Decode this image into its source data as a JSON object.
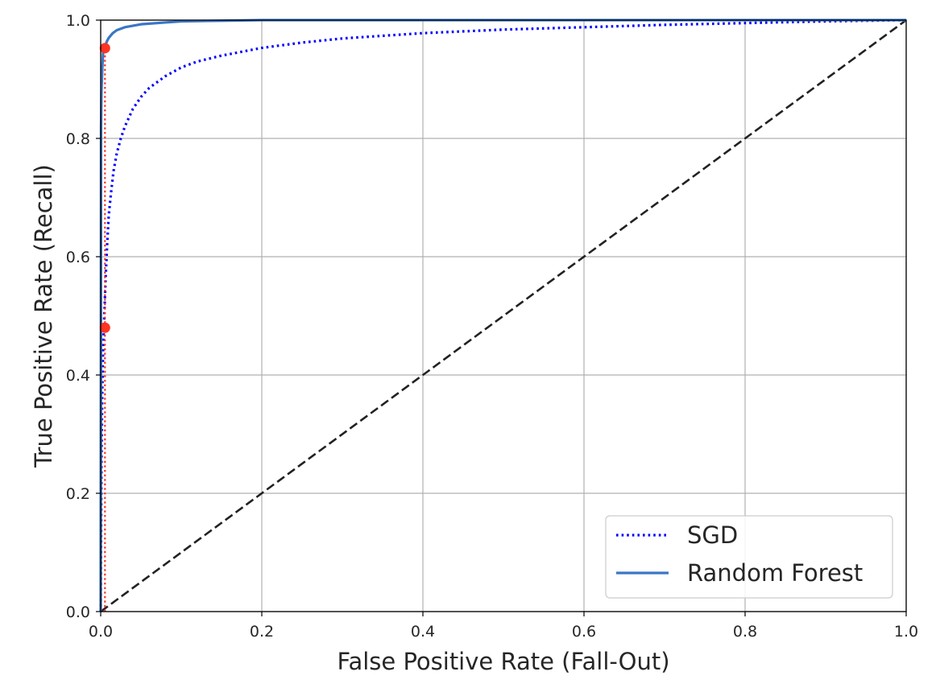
{
  "chart_data": {
    "type": "line",
    "xlabel": "False Positive Rate (Fall-Out)",
    "ylabel": "True Positive Rate (Recall)",
    "xlim": [
      0,
      1
    ],
    "ylim": [
      0,
      1
    ],
    "grid": true,
    "legend_position": "bottom-right",
    "xticks": [
      0.0,
      0.2,
      0.4,
      0.6,
      0.8,
      1.0
    ],
    "yticks": [
      0.0,
      0.2,
      0.4,
      0.6,
      0.8,
      1.0
    ],
    "xtick_labels": [
      "0.0",
      "0.2",
      "0.4",
      "0.6",
      "0.8",
      "1.0"
    ],
    "ytick_labels": [
      "0.0",
      "0.2",
      "0.4",
      "0.6",
      "0.8",
      "1.0"
    ],
    "series": [
      {
        "name": "SGD",
        "style": "dotted",
        "color": "#0000ff",
        "x": [
          0,
          0.001,
          0.002,
          0.003,
          0.004,
          0.005,
          0.006,
          0.008,
          0.01,
          0.013,
          0.016,
          0.02,
          0.025,
          0.03,
          0.04,
          0.05,
          0.06,
          0.07,
          0.08,
          0.1,
          0.12,
          0.15,
          0.2,
          0.25,
          0.3,
          0.4,
          0.5,
          0.6,
          0.7,
          0.8,
          0.9,
          1.0
        ],
        "y": [
          0,
          0.26,
          0.38,
          0.44,
          0.48,
          0.52,
          0.56,
          0.62,
          0.67,
          0.71,
          0.745,
          0.775,
          0.8,
          0.82,
          0.85,
          0.87,
          0.885,
          0.895,
          0.905,
          0.92,
          0.93,
          0.94,
          0.953,
          0.962,
          0.969,
          0.978,
          0.984,
          0.988,
          0.992,
          0.995,
          0.998,
          1.0
        ]
      },
      {
        "name": "Random Forest",
        "style": "solid",
        "color": "#3a76c6",
        "x": [
          0,
          0.0005,
          0.001,
          0.002,
          0.003,
          0.005,
          0.008,
          0.01,
          0.015,
          0.02,
          0.03,
          0.05,
          0.08,
          0.1,
          0.15,
          0.2,
          1.0
        ],
        "y": [
          0,
          0.82,
          0.88,
          0.92,
          0.945,
          0.955,
          0.965,
          0.97,
          0.978,
          0.983,
          0.988,
          0.993,
          0.996,
          0.998,
          0.999,
          1.0,
          1.0
        ]
      }
    ],
    "reference_line": {
      "style": "dashed",
      "color": "#000000",
      "x": [
        0,
        1
      ],
      "y": [
        0,
        1
      ]
    },
    "highlight_points": [
      {
        "x": 0.0053,
        "y": 0.4799,
        "color": "#ff3322"
      },
      {
        "x": 0.0053,
        "y": 0.9526,
        "color": "#ff3322"
      }
    ],
    "highlight_lines": {
      "style": "dotted",
      "color": "#ff3322",
      "vertical_x": 0.0053,
      "vertical_y_range": [
        0,
        0.9526
      ]
    },
    "legend": [
      "SGD",
      "Random Forest"
    ]
  }
}
